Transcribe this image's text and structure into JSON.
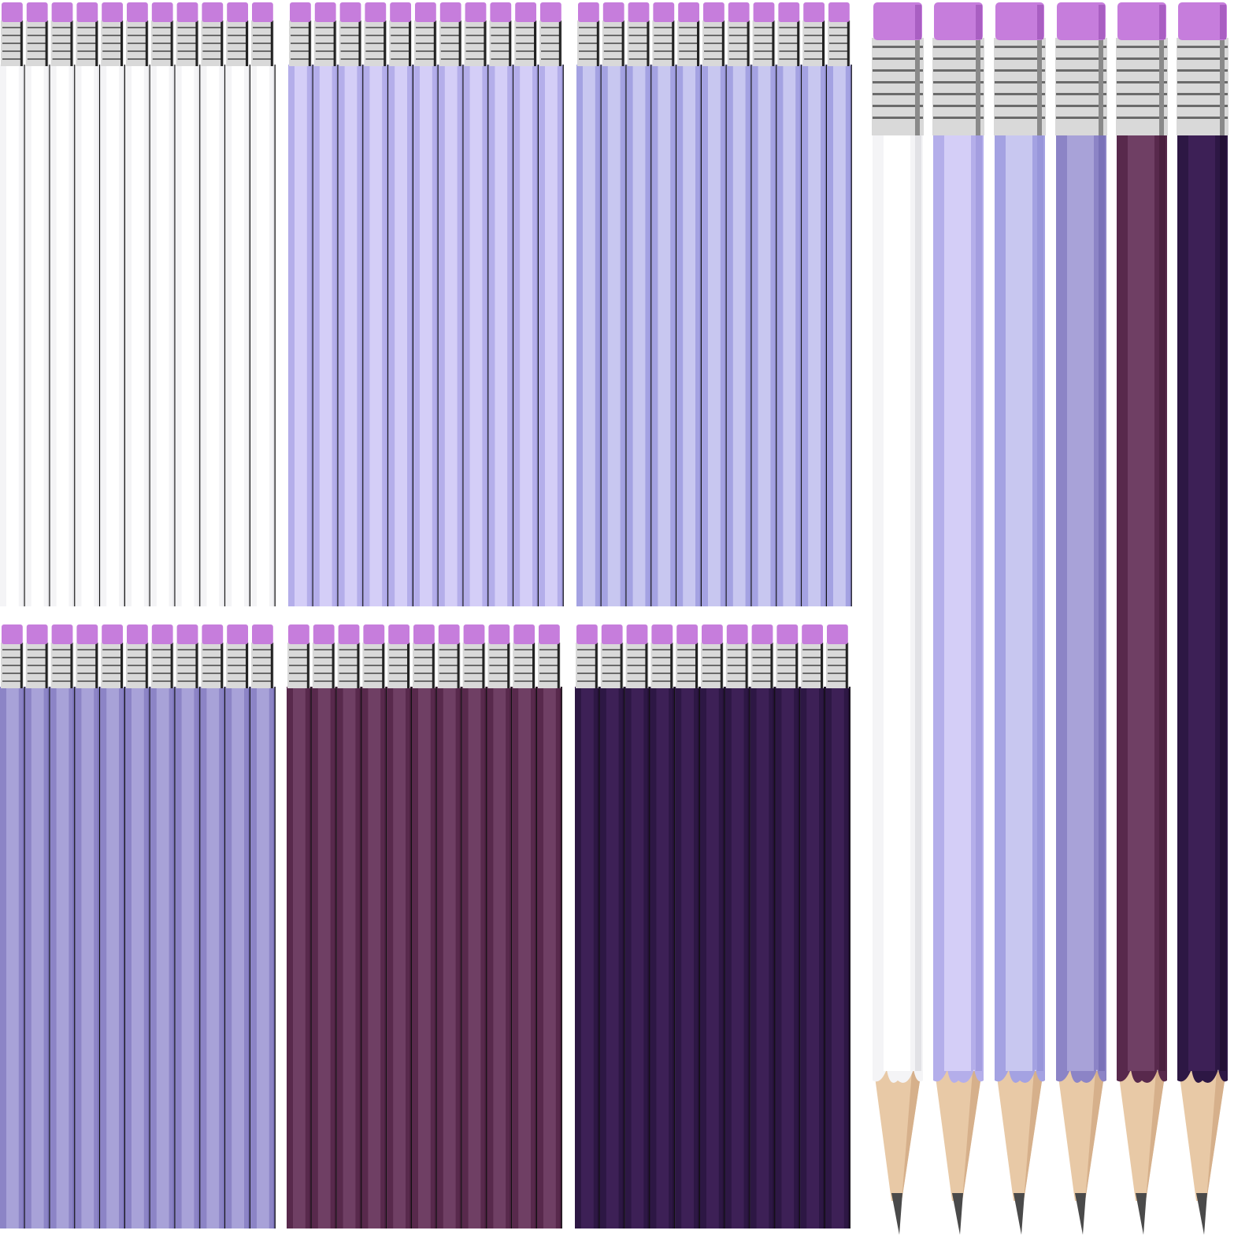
{
  "colors": {
    "eraser": "#c67ddc",
    "eraser_shade": "#a95fc2",
    "ferrule": "#d9d9d9",
    "ferrule_dark": "#6a6a6a",
    "wood": "#e8c9a6",
    "wood_shade": "#d6b08b",
    "lead": "#4a4a4a"
  },
  "bundles": [
    {
      "name": "white",
      "count": 11,
      "body": "#f4f4f6",
      "face": "#ffffff",
      "edge": "#e2e2e6"
    },
    {
      "name": "light-lavender",
      "count": 11,
      "body": "#b4aeea",
      "face": "#d4cef7",
      "edge": "#a49ee0"
    },
    {
      "name": "periwinkle",
      "count": 11,
      "body": "#a4a2e2",
      "face": "#c8c7f0",
      "edge": "#9896da"
    },
    {
      "name": "medium-lavender",
      "count": 11,
      "body": "#8c84c6",
      "face": "#a8a2d8",
      "edge": "#7a72b8"
    },
    {
      "name": "plum",
      "count": 11,
      "body": "#58294c",
      "face": "#6f3f64",
      "edge": "#4a203f"
    },
    {
      "name": "dark-purple",
      "count": 11,
      "body": "#2d1744",
      "face": "#3d2056",
      "edge": "#231035"
    }
  ]
}
